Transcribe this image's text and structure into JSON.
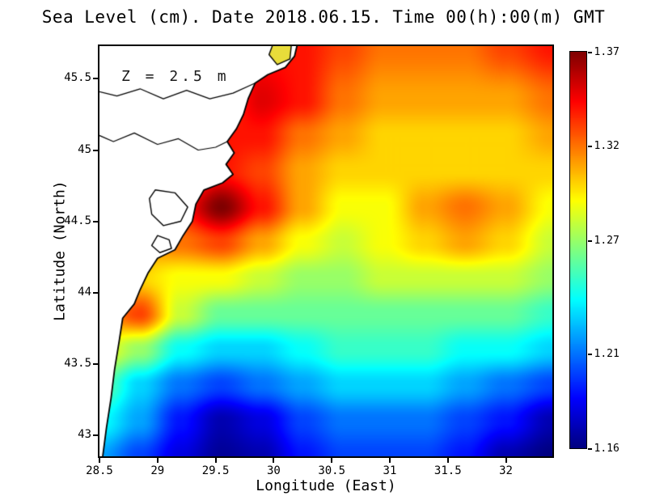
{
  "figure": {
    "title": "Sea Level (cm). Date 2018.06.15. Time 00(h):00(m) GMT",
    "annotation": "Z = 2.5 m",
    "xlabel": "Longitude (East)",
    "ylabel": "Latitude (North)"
  },
  "colorbar": {
    "colormap": "jet",
    "min": 1.16,
    "max": 1.37,
    "tick_values": [
      1.37,
      1.32,
      1.27,
      1.21,
      1.16
    ],
    "tick_labels": [
      "1.37",
      "1.32",
      "1.27",
      "1.21",
      "1.16"
    ]
  },
  "chart_data": {
    "type": "heatmap",
    "title": "Sea Level (cm). Date 2018.06.15. Time 00(h):00(m) GMT",
    "xlabel": "Longitude (East)",
    "ylabel": "Latitude (North)",
    "annotation": "Z = 2.5 m",
    "x_range": [
      28.5,
      32.4
    ],
    "y_range": [
      42.85,
      45.73
    ],
    "x_ticks": [
      28.5,
      29,
      29.5,
      30,
      30.5,
      31,
      31.5,
      32
    ],
    "x_tick_labels": [
      "28.5",
      "29",
      "29.5",
      "30",
      "30.5",
      "31",
      "31.5",
      "32"
    ],
    "y_ticks": [
      43,
      43.5,
      44,
      44.5,
      45,
      45.5
    ],
    "y_tick_labels": [
      "43",
      "43.5",
      "44",
      "44.5",
      "45",
      "45.5"
    ],
    "zmin": 1.16,
    "zmax": 1.37,
    "colormap": "jet",
    "grid_x": [
      28.5,
      28.85,
      29.2,
      29.55,
      29.9,
      30.25,
      30.6,
      30.95,
      31.3,
      31.65,
      32.0,
      32.4
    ],
    "grid_y": [
      42.85,
      43.1,
      43.35,
      43.6,
      43.85,
      44.1,
      44.35,
      44.6,
      44.85,
      45.1,
      45.35,
      45.73
    ],
    "values": [
      [
        1.22,
        1.2,
        1.18,
        1.165,
        1.17,
        1.19,
        1.2,
        1.2,
        1.2,
        1.19,
        1.17,
        1.16
      ],
      [
        1.24,
        1.22,
        1.19,
        1.17,
        1.18,
        1.2,
        1.21,
        1.21,
        1.21,
        1.2,
        1.19,
        1.17
      ],
      [
        1.26,
        1.23,
        1.21,
        1.2,
        1.21,
        1.22,
        1.23,
        1.23,
        1.23,
        1.22,
        1.21,
        1.2
      ],
      [
        1.29,
        1.27,
        1.24,
        1.23,
        1.23,
        1.24,
        1.25,
        1.25,
        1.25,
        1.24,
        1.24,
        1.23
      ],
      [
        1.31,
        1.33,
        1.28,
        1.26,
        1.26,
        1.26,
        1.26,
        1.26,
        1.26,
        1.26,
        1.26,
        1.25
      ],
      [
        1.3,
        1.3,
        1.29,
        1.29,
        1.28,
        1.27,
        1.27,
        1.28,
        1.28,
        1.28,
        1.28,
        1.27
      ],
      [
        1.3,
        1.31,
        1.32,
        1.33,
        1.31,
        1.29,
        1.28,
        1.29,
        1.3,
        1.31,
        1.3,
        1.28
      ],
      [
        1.3,
        1.31,
        1.34,
        1.37,
        1.34,
        1.31,
        1.29,
        1.29,
        1.31,
        1.32,
        1.31,
        1.29
      ],
      [
        1.3,
        1.31,
        1.32,
        1.34,
        1.33,
        1.31,
        1.3,
        1.3,
        1.3,
        1.3,
        1.3,
        1.3
      ],
      [
        1.3,
        1.3,
        1.31,
        1.34,
        1.34,
        1.32,
        1.31,
        1.3,
        1.3,
        1.3,
        1.3,
        1.31
      ],
      [
        1.3,
        1.3,
        1.31,
        1.33,
        1.35,
        1.34,
        1.32,
        1.31,
        1.31,
        1.31,
        1.31,
        1.32
      ],
      [
        1.3,
        1.3,
        1.3,
        1.32,
        1.34,
        1.34,
        1.33,
        1.32,
        1.32,
        1.32,
        1.33,
        1.34
      ]
    ],
    "coastline": [
      [
        28.45,
        45.8
      ],
      [
        30.22,
        45.8
      ],
      [
        30.18,
        45.66
      ],
      [
        30.1,
        45.58
      ],
      [
        29.95,
        45.53
      ],
      [
        29.84,
        45.47
      ],
      [
        29.78,
        45.36
      ],
      [
        29.74,
        45.25
      ],
      [
        29.68,
        45.15
      ],
      [
        29.6,
        45.06
      ],
      [
        29.66,
        44.98
      ],
      [
        29.59,
        44.9
      ],
      [
        29.65,
        44.83
      ],
      [
        29.56,
        44.77
      ],
      [
        29.4,
        44.72
      ],
      [
        29.33,
        44.62
      ],
      [
        29.3,
        44.5
      ],
      [
        29.22,
        44.4
      ],
      [
        29.15,
        44.3
      ],
      [
        29.0,
        44.24
      ],
      [
        28.92,
        44.14
      ],
      [
        28.85,
        44.02
      ],
      [
        28.8,
        43.92
      ],
      [
        28.7,
        43.82
      ],
      [
        28.67,
        43.66
      ],
      [
        28.63,
        43.46
      ],
      [
        28.6,
        43.26
      ],
      [
        28.56,
        43.05
      ],
      [
        28.52,
        42.8
      ],
      [
        28.45,
        42.8
      ]
    ],
    "lagoons": [
      [
        [
          28.98,
          44.72
        ],
        [
          29.15,
          44.7
        ],
        [
          29.26,
          44.6
        ],
        [
          29.2,
          44.5
        ],
        [
          29.05,
          44.47
        ],
        [
          28.95,
          44.55
        ],
        [
          28.93,
          44.66
        ],
        [
          28.98,
          44.72
        ]
      ],
      [
        [
          29.0,
          44.4
        ],
        [
          29.1,
          44.37
        ],
        [
          29.12,
          44.31
        ],
        [
          29.02,
          44.28
        ],
        [
          28.95,
          44.33
        ],
        [
          29.0,
          44.4
        ]
      ]
    ],
    "rivers": [
      [
        [
          28.45,
          45.42
        ],
        [
          28.65,
          45.38
        ],
        [
          28.85,
          45.43
        ],
        [
          29.05,
          45.36
        ],
        [
          29.25,
          45.42
        ],
        [
          29.45,
          45.36
        ],
        [
          29.65,
          45.4
        ],
        [
          29.84,
          45.47
        ]
      ],
      [
        [
          28.45,
          45.12
        ],
        [
          28.62,
          45.06
        ],
        [
          28.8,
          45.12
        ],
        [
          29.0,
          45.04
        ],
        [
          29.18,
          45.08
        ],
        [
          29.35,
          45.0
        ],
        [
          29.5,
          45.02
        ],
        [
          29.6,
          45.06
        ]
      ]
    ],
    "delta_lake": {
      "color": "#e8dc3a",
      "points": [
        [
          30.02,
          45.8
        ],
        [
          30.16,
          45.8
        ],
        [
          30.14,
          45.64
        ],
        [
          30.03,
          45.6
        ],
        [
          29.96,
          45.67
        ],
        [
          30.02,
          45.8
        ]
      ]
    }
  }
}
